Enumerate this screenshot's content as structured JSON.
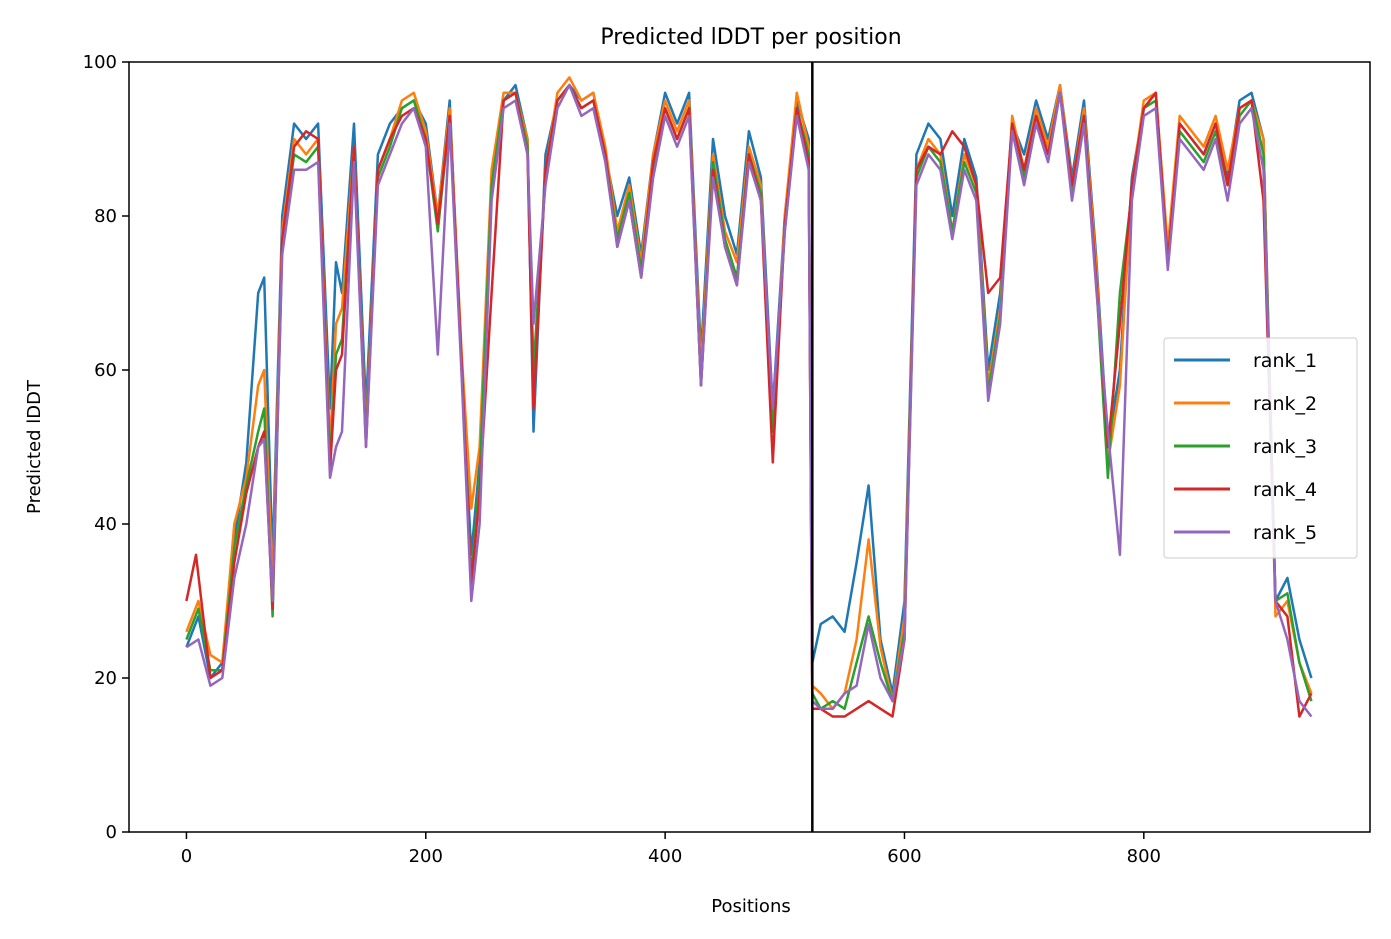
{
  "chart_data": {
    "type": "line",
    "title": "Predicted lDDT per position",
    "xlabel": "Positions",
    "ylabel": "Predicted lDDT",
    "xlim": [
      -48,
      989
    ],
    "ylim": [
      0,
      100
    ],
    "x_ticks": [
      0,
      200,
      400,
      600,
      800
    ],
    "y_ticks": [
      0,
      20,
      40,
      60,
      80,
      100
    ],
    "chain_break": 523,
    "legend_position": "right",
    "grid": false,
    "series": [
      {
        "name": "rank_1",
        "color": "#1f77b4",
        "x": [
          0,
          10,
          20,
          30,
          40,
          50,
          60,
          65,
          72,
          80,
          90,
          100,
          110,
          120,
          125,
          130,
          140,
          150,
          160,
          170,
          180,
          190,
          200,
          210,
          220,
          230,
          238,
          245,
          255,
          265,
          275,
          285,
          290,
          300,
          310,
          320,
          330,
          340,
          350,
          360,
          370,
          380,
          390,
          400,
          410,
          420,
          430,
          440,
          450,
          460,
          470,
          480,
          490,
          500,
          510,
          520,
          523,
          530,
          540,
          550,
          560,
          570,
          580,
          590,
          600,
          610,
          620,
          630,
          640,
          650,
          660,
          670,
          680,
          690,
          700,
          710,
          720,
          730,
          740,
          750,
          760,
          770,
          780,
          790,
          800,
          810,
          820,
          830,
          840,
          850,
          860,
          870,
          880,
          890,
          900,
          910,
          920,
          930,
          940
        ],
        "y": [
          24,
          28,
          20,
          22,
          38,
          48,
          70,
          72,
          35,
          80,
          92,
          90,
          92,
          55,
          74,
          70,
          92,
          55,
          88,
          92,
          94,
          95,
          92,
          80,
          95,
          60,
          36,
          48,
          85,
          95,
          97,
          90,
          52,
          88,
          95,
          97,
          95,
          96,
          88,
          80,
          85,
          75,
          88,
          96,
          92,
          96,
          62,
          90,
          80,
          75,
          91,
          85,
          55,
          80,
          95,
          90,
          22,
          27,
          28,
          26,
          35,
          45,
          25,
          18,
          30,
          88,
          92,
          90,
          80,
          90,
          85,
          60,
          70,
          92,
          88,
          95,
          90,
          97,
          85,
          95,
          75,
          50,
          60,
          85,
          94,
          96,
          75,
          92,
          90,
          88,
          92,
          85,
          95,
          96,
          90,
          30,
          33,
          25,
          20
        ]
      },
      {
        "name": "rank_2",
        "color": "#ff7f0e",
        "x": [
          0,
          10,
          20,
          30,
          40,
          50,
          60,
          65,
          72,
          80,
          90,
          100,
          110,
          120,
          125,
          130,
          140,
          150,
          160,
          170,
          180,
          190,
          200,
          210,
          220,
          230,
          238,
          245,
          255,
          265,
          275,
          285,
          290,
          300,
          310,
          320,
          330,
          340,
          350,
          360,
          370,
          380,
          390,
          400,
          410,
          420,
          430,
          440,
          450,
          460,
          470,
          480,
          490,
          500,
          510,
          520,
          523,
          530,
          540,
          550,
          560,
          570,
          580,
          590,
          600,
          610,
          620,
          630,
          640,
          650,
          660,
          670,
          680,
          690,
          700,
          710,
          720,
          730,
          740,
          750,
          760,
          770,
          780,
          790,
          800,
          810,
          820,
          830,
          840,
          850,
          860,
          870,
          880,
          890,
          900,
          910,
          920,
          930,
          940
        ],
        "y": [
          26,
          30,
          23,
          22,
          40,
          46,
          58,
          60,
          32,
          78,
          90,
          88,
          90,
          50,
          66,
          68,
          89,
          52,
          86,
          90,
          95,
          96,
          91,
          80,
          94,
          62,
          42,
          50,
          86,
          96,
          96,
          90,
          58,
          86,
          96,
          98,
          95,
          96,
          89,
          78,
          84,
          74,
          88,
          95,
          91,
          95,
          60,
          88,
          78,
          74,
          89,
          84,
          52,
          80,
          96,
          89,
          19,
          18,
          16,
          18,
          25,
          38,
          24,
          17,
          28,
          86,
          90,
          88,
          78,
          88,
          84,
          58,
          68,
          93,
          86,
          94,
          89,
          97,
          84,
          94,
          74,
          48,
          58,
          84,
          95,
          96,
          76,
          93,
          91,
          89,
          93,
          86,
          94,
          95,
          90,
          28,
          30,
          22,
          18
        ]
      },
      {
        "name": "rank_3",
        "color": "#2ca02c",
        "x": [
          0,
          10,
          20,
          30,
          40,
          50,
          60,
          65,
          72,
          80,
          90,
          100,
          110,
          120,
          125,
          130,
          140,
          150,
          160,
          170,
          180,
          190,
          200,
          210,
          220,
          230,
          238,
          245,
          255,
          265,
          275,
          285,
          290,
          300,
          310,
          320,
          330,
          340,
          350,
          360,
          370,
          380,
          390,
          400,
          410,
          420,
          430,
          440,
          450,
          460,
          470,
          480,
          490,
          500,
          510,
          520,
          523,
          530,
          540,
          550,
          560,
          570,
          580,
          590,
          600,
          610,
          620,
          630,
          640,
          650,
          660,
          670,
          680,
          690,
          700,
          710,
          720,
          730,
          740,
          750,
          760,
          770,
          780,
          790,
          800,
          810,
          820,
          830,
          840,
          850,
          860,
          870,
          880,
          890,
          900,
          910,
          920,
          930,
          940
        ],
        "y": [
          25,
          29,
          21,
          21,
          37,
          45,
          52,
          55,
          28,
          76,
          88,
          87,
          89,
          48,
          62,
          64,
          88,
          51,
          85,
          89,
          94,
          95,
          90,
          78,
          93,
          60,
          33,
          46,
          84,
          95,
          96,
          89,
          60,
          85,
          95,
          97,
          94,
          95,
          88,
          77,
          83,
          73,
          86,
          94,
          90,
          94,
          58,
          87,
          77,
          72,
          88,
          83,
          52,
          78,
          94,
          88,
          18,
          16,
          17,
          16,
          22,
          28,
          22,
          17,
          26,
          85,
          89,
          87,
          78,
          87,
          83,
          57,
          67,
          92,
          85,
          93,
          88,
          96,
          83,
          93,
          72,
          46,
          70,
          83,
          94,
          95,
          74,
          91,
          89,
          87,
          91,
          84,
          93,
          95,
          88,
          30,
          31,
          22,
          17
        ]
      },
      {
        "name": "rank_4",
        "color": "#d62728",
        "x": [
          0,
          8,
          20,
          30,
          40,
          50,
          60,
          65,
          72,
          80,
          90,
          100,
          110,
          120,
          125,
          130,
          140,
          150,
          160,
          170,
          180,
          190,
          200,
          210,
          220,
          230,
          238,
          245,
          255,
          265,
          275,
          285,
          290,
          300,
          310,
          320,
          330,
          340,
          350,
          360,
          370,
          380,
          390,
          400,
          410,
          420,
          430,
          440,
          450,
          460,
          470,
          480,
          490,
          500,
          510,
          520,
          523,
          530,
          540,
          550,
          560,
          570,
          580,
          590,
          600,
          610,
          620,
          630,
          640,
          650,
          660,
          670,
          680,
          690,
          700,
          710,
          720,
          730,
          740,
          750,
          760,
          770,
          780,
          790,
          800,
          810,
          820,
          830,
          840,
          850,
          860,
          870,
          880,
          890,
          900,
          910,
          920,
          930,
          940
        ],
        "y": [
          30,
          36,
          20,
          21,
          35,
          44,
          50,
          52,
          29,
          77,
          89,
          91,
          90,
          47,
          60,
          62,
          89,
          50,
          86,
          90,
          93,
          94,
          90,
          79,
          93,
          61,
          32,
          44,
          70,
          95,
          96,
          88,
          55,
          86,
          95,
          97,
          94,
          95,
          88,
          76,
          82,
          72,
          87,
          94,
          90,
          94,
          58,
          86,
          76,
          71,
          88,
          82,
          48,
          79,
          94,
          87,
          16,
          16,
          15,
          15,
          16,
          17,
          16,
          15,
          25,
          86,
          89,
          88,
          91,
          89,
          84,
          70,
          72,
          92,
          86,
          93,
          88,
          96,
          84,
          93,
          72,
          50,
          66,
          84,
          94,
          96,
          74,
          92,
          90,
          88,
          92,
          84,
          94,
          95,
          82,
          30,
          28,
          15,
          18
        ]
      },
      {
        "name": "rank_5",
        "color": "#9467bd",
        "x": [
          0,
          10,
          20,
          30,
          40,
          50,
          60,
          65,
          72,
          80,
          90,
          100,
          110,
          120,
          125,
          130,
          140,
          150,
          160,
          170,
          180,
          190,
          200,
          210,
          220,
          230,
          238,
          245,
          255,
          265,
          275,
          285,
          290,
          300,
          310,
          320,
          330,
          340,
          350,
          360,
          370,
          380,
          390,
          400,
          410,
          420,
          430,
          440,
          450,
          460,
          470,
          480,
          490,
          500,
          510,
          520,
          523,
          530,
          540,
          550,
          560,
          570,
          580,
          590,
          600,
          610,
          620,
          630,
          640,
          650,
          660,
          670,
          680,
          690,
          700,
          710,
          720,
          730,
          740,
          750,
          760,
          770,
          780,
          790,
          800,
          810,
          820,
          830,
          840,
          850,
          860,
          870,
          880,
          890,
          900,
          910,
          920,
          930,
          940
        ],
        "y": [
          24,
          25,
          19,
          20,
          33,
          40,
          50,
          51,
          30,
          75,
          86,
          86,
          87,
          46,
          50,
          52,
          87,
          50,
          84,
          88,
          92,
          94,
          89,
          62,
          92,
          59,
          30,
          40,
          82,
          94,
          95,
          88,
          66,
          84,
          94,
          97,
          93,
          94,
          87,
          76,
          82,
          72,
          85,
          93,
          89,
          93,
          58,
          85,
          76,
          71,
          87,
          82,
          55,
          78,
          93,
          86,
          17,
          16,
          16,
          18,
          19,
          27,
          20,
          17,
          25,
          84,
          88,
          86,
          77,
          86,
          82,
          56,
          66,
          91,
          84,
          92,
          87,
          96,
          82,
          92,
          71,
          52,
          36,
          82,
          93,
          94,
          73,
          90,
          88,
          86,
          90,
          82,
          92,
          94,
          86,
          30,
          25,
          17,
          15
        ]
      }
    ]
  }
}
